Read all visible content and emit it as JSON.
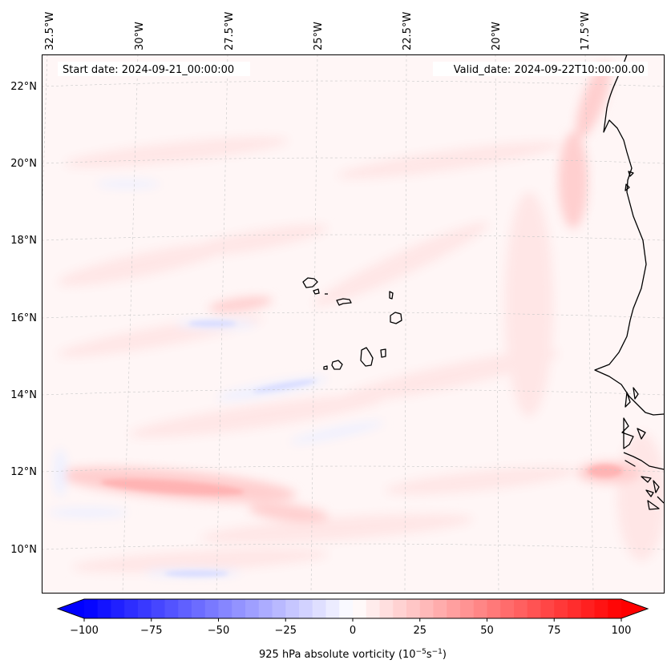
{
  "map": {
    "start_date_text": "Start date: 2024-09-21_00:00:00",
    "valid_date_text": "Valid_date: 2024-09-22T10:00:00.00",
    "lon_labels": [
      "32.5°W",
      "30°W",
      "27.5°W",
      "25°W",
      "22.5°W",
      "20°W",
      "17.5°W"
    ],
    "lat_labels": [
      "22°N",
      "20°N",
      "18°N",
      "16°N",
      "14°N",
      "12°N",
      "10°N"
    ],
    "field_colors": {
      "background": "#fff6f6",
      "weak_positive": "#ffe6e6",
      "moderate_positive": "#ffcfcf",
      "strong_positive": "#ffb3b3",
      "weak_negative": "#eef0ff",
      "moderate_negative": "#d9ddff"
    }
  },
  "colorbar": {
    "label_prefix": "925 hPa absolute vorticity (10",
    "label_exp1": "−5",
    "label_mid": "s",
    "label_exp2": "−1",
    "label_suffix": ")",
    "min": -100,
    "max": 100,
    "tick_values": [
      -100,
      -75,
      -50,
      -25,
      0,
      25,
      50,
      75,
      100
    ],
    "tick_labels": [
      "−100",
      "−75",
      "−50",
      "−25",
      "0",
      "25",
      "50",
      "75",
      "100"
    ],
    "colors": {
      "negative": "#0000ff",
      "center": "#ffffff",
      "positive": "#ff0000"
    },
    "extend": "both"
  }
}
